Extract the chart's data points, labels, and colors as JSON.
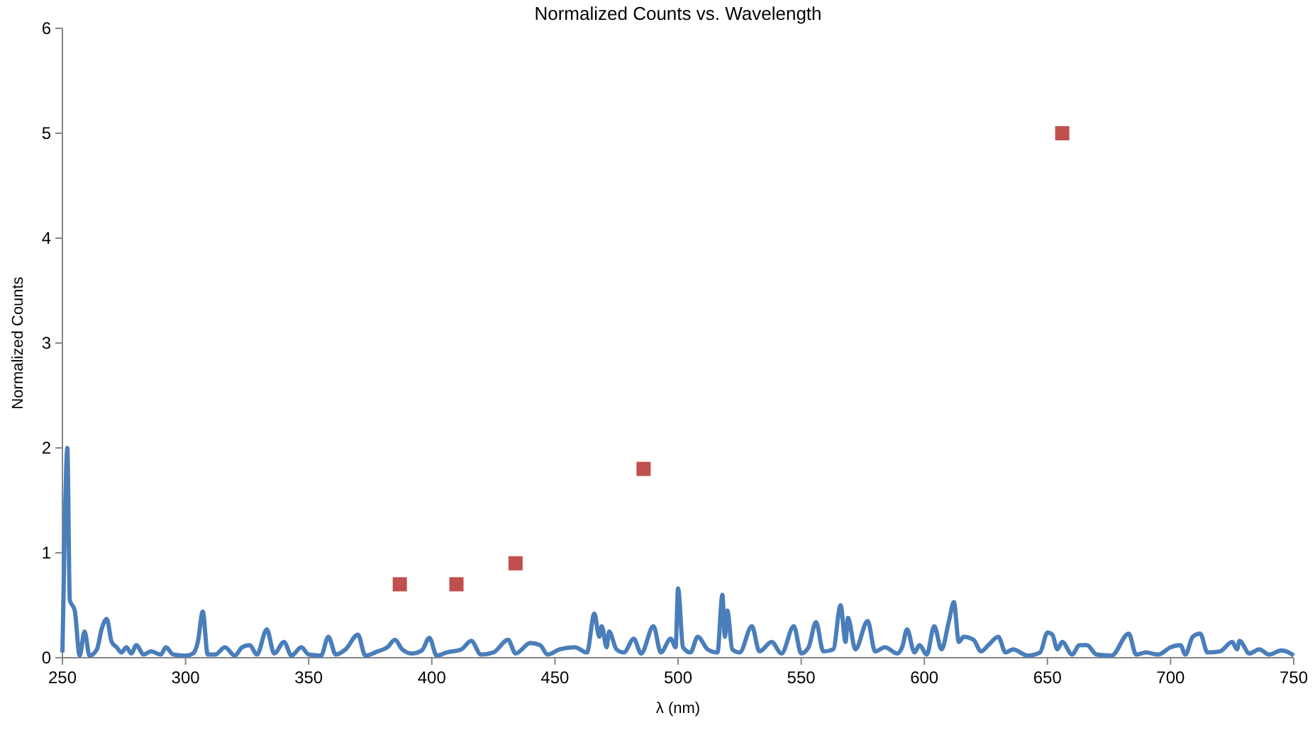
{
  "chart_data": {
    "type": "line",
    "title": "Normalized Counts vs. Wavelength",
    "xlabel": "λ (nm)",
    "ylabel": "Normalized Counts",
    "xlim": [
      250,
      750
    ],
    "ylim": [
      0,
      6
    ],
    "xticks": [
      250,
      300,
      350,
      400,
      450,
      500,
      550,
      600,
      650,
      700,
      750
    ],
    "yticks": [
      0,
      1,
      2,
      3,
      4,
      5,
      6
    ],
    "grid": false,
    "series": [
      {
        "color": "#4a7ebb",
        "marker": "none",
        "x": [
          250,
          251,
          252,
          253,
          255,
          257,
          259,
          261,
          264,
          266,
          268,
          270,
          272,
          274,
          276,
          278,
          280,
          283,
          286,
          290,
          292,
          295,
          300,
          303,
          305,
          307,
          309,
          312,
          316,
          320,
          323,
          326,
          329,
          333,
          336,
          340,
          343,
          347,
          350,
          355,
          358,
          361,
          365,
          370,
          373,
          378,
          382,
          385,
          388,
          392,
          396,
          399,
          402,
          406,
          412,
          416,
          420,
          425,
          431,
          434,
          440,
          444,
          447,
          452,
          458,
          463,
          466,
          468,
          469,
          471,
          472,
          475,
          478,
          482,
          485,
          490,
          493,
          497,
          499,
          500,
          502,
          505,
          508,
          512,
          516,
          518,
          519,
          520,
          522,
          525,
          530,
          533,
          538,
          542,
          547,
          550,
          553,
          556,
          559,
          563,
          566,
          568,
          569,
          572,
          577,
          580,
          584,
          589,
          591,
          593,
          596,
          598,
          601,
          604,
          607,
          610,
          612,
          614,
          616,
          620,
          623,
          626,
          630,
          633,
          636,
          642,
          647,
          650,
          652,
          654,
          656,
          660,
          663,
          666,
          670,
          676,
          683,
          686,
          690,
          695,
          700,
          704,
          706,
          709,
          712,
          715,
          720,
          725,
          727,
          728,
          732,
          736,
          740,
          745,
          748,
          750
        ],
        "values": [
          0.05,
          1.3,
          2.0,
          0.55,
          0.45,
          0.02,
          0.25,
          0.02,
          0.08,
          0.28,
          0.37,
          0.15,
          0.1,
          0.05,
          0.1,
          0.04,
          0.12,
          0.03,
          0.06,
          0.03,
          0.1,
          0.03,
          0.02,
          0.04,
          0.15,
          0.44,
          0.03,
          0.03,
          0.1,
          0.02,
          0.1,
          0.12,
          0.03,
          0.27,
          0.04,
          0.15,
          0.02,
          0.1,
          0.03,
          0.02,
          0.2,
          0.03,
          0.08,
          0.22,
          0.02,
          0.06,
          0.1,
          0.17,
          0.08,
          0.04,
          0.07,
          0.19,
          0.02,
          0.05,
          0.08,
          0.16,
          0.03,
          0.05,
          0.17,
          0.04,
          0.14,
          0.12,
          0.03,
          0.08,
          0.1,
          0.05,
          0.42,
          0.2,
          0.3,
          0.1,
          0.25,
          0.08,
          0.05,
          0.18,
          0.04,
          0.3,
          0.05,
          0.18,
          0.1,
          0.66,
          0.1,
          0.05,
          0.2,
          0.08,
          0.05,
          0.6,
          0.2,
          0.45,
          0.08,
          0.05,
          0.3,
          0.06,
          0.15,
          0.04,
          0.3,
          0.04,
          0.1,
          0.34,
          0.06,
          0.08,
          0.5,
          0.15,
          0.38,
          0.08,
          0.35,
          0.06,
          0.1,
          0.04,
          0.1,
          0.27,
          0.05,
          0.12,
          0.03,
          0.3,
          0.08,
          0.35,
          0.53,
          0.15,
          0.2,
          0.17,
          0.06,
          0.12,
          0.2,
          0.05,
          0.08,
          0.02,
          0.05,
          0.24,
          0.22,
          0.08,
          0.15,
          0.03,
          0.12,
          0.12,
          0.03,
          0.02,
          0.23,
          0.03,
          0.05,
          0.03,
          0.1,
          0.12,
          0.03,
          0.2,
          0.23,
          0.05,
          0.06,
          0.15,
          0.08,
          0.16,
          0.04,
          0.08,
          0.03,
          0.07,
          0.05,
          0.02
        ]
      },
      {
        "type": "scatter",
        "color": "#c0504d",
        "marker": "square",
        "x": [
          387,
          410,
          434,
          486,
          656
        ],
        "values": [
          0.7,
          0.7,
          0.9,
          1.8,
          5.0
        ]
      }
    ]
  }
}
